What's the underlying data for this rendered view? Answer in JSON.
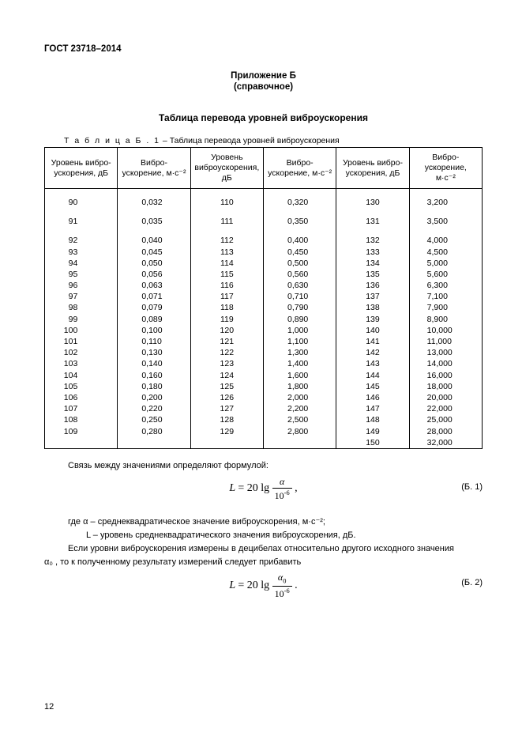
{
  "doc_header": "ГОСТ 23718–2014",
  "appendix_title": "Приложение Б",
  "appendix_sub": "(справочное)",
  "table_title": "Таблица перевода уровней виброускорения",
  "table_caption_spaced": "Т а б л и ц а   Б . 1",
  "table_caption_rest": " – Таблица перевода уровней виброускорения",
  "headers": {
    "h1": "Уровень вибро-\nускорения, дБ",
    "h2": "Вибро-\nускорение, м·с⁻²",
    "h3": "Уровень\nвиброускорения,\nдБ",
    "h4": "Вибро-\nускорение,   м·с⁻²",
    "h5": "Уровень вибро-\nускорения, дБ",
    "h6": "Вибро-\nускорение,\nм·с⁻²"
  },
  "rows": [
    [
      "90",
      "0,032",
      "110",
      "0,320",
      "130",
      "3,200"
    ],
    [
      "91",
      "0,035",
      "111",
      "0,350",
      "131",
      "3,500"
    ]
  ],
  "rows2": [
    [
      "92",
      "0,040",
      "112",
      "0,400",
      "132",
      "4,000"
    ],
    [
      "93",
      "0,045",
      "113",
      "0,450",
      "133",
      "4,500"
    ],
    [
      "94",
      "0,050",
      "114",
      "0,500",
      "134",
      "5,000"
    ],
    [
      "95",
      "0,056",
      "115",
      "0,560",
      "135",
      "5,600"
    ],
    [
      "96",
      "0,063",
      "116",
      "0,630",
      "136",
      "6,300"
    ],
    [
      "97",
      "0,071",
      "117",
      "0,710",
      "137",
      "7,100"
    ],
    [
      "98",
      "0,079",
      "118",
      "0,790",
      "138",
      "7,900"
    ],
    [
      "99",
      "0,089",
      "119",
      "0,890",
      "139",
      "8,900"
    ],
    [
      "100",
      "0,100",
      "120",
      "1,000",
      "140",
      "10,000"
    ],
    [
      "101",
      "0,110",
      "121",
      "1,100",
      "141",
      "11,000"
    ],
    [
      "102",
      "0,130",
      "122",
      "1,300",
      "142",
      "13,000"
    ],
    [
      "103",
      "0,140",
      "123",
      "1,400",
      "143",
      "14,000"
    ],
    [
      "104",
      "0,160",
      "124",
      "1,600",
      "144",
      "16,000"
    ],
    [
      "105",
      "0,180",
      "125",
      "1,800",
      "145",
      "18,000"
    ],
    [
      "106",
      "0,200",
      "126",
      "2,000",
      "146",
      "20,000"
    ],
    [
      "107",
      "0,220",
      "127",
      "2,200",
      "147",
      "22,000"
    ],
    [
      "108",
      "0,250",
      "128",
      "2,500",
      "148",
      "25,000"
    ],
    [
      "109",
      "0,280",
      "129",
      "2,800",
      "149",
      "28,000"
    ],
    [
      "",
      "",
      "",
      "",
      "150",
      "32,000"
    ]
  ],
  "text": {
    "t1": "Связь между значениями определяют формулой:",
    "eq1_num": "(Б. 1)",
    "t2": "где α – среднеквадратическое значение виброускорения, м·с⁻²;",
    "t3": "L – уровень среднеквадратического значения виброускорения, дБ.",
    "t4": "Если уровни виброускорения измерены в децибелах относительно другого исходного значения",
    "t5": "α₀ , то к полученному результату измерений следует прибавить",
    "eq2_num": "(Б. 2)"
  },
  "page_number": "12"
}
